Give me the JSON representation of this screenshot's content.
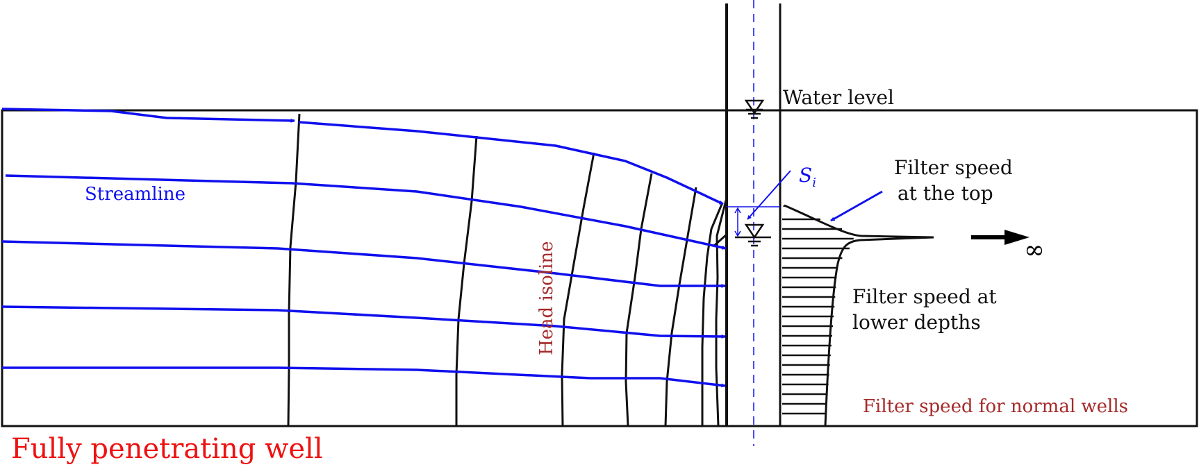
{
  "labels": {
    "water_level": "Water level",
    "streamline": "Streamline",
    "head_isoline": "Head isoline",
    "si_main": "S",
    "si_sub": "i",
    "filter_top_1": "Filter speed",
    "filter_top_2": "at the top",
    "filter_lower_1": "Filter speed at",
    "filter_lower_2": "lower depths",
    "filter_normal": "Filter speed for normal wells",
    "infinity": "∞",
    "title": "Fully penetrating well"
  },
  "colors": {
    "streamline": "#1010ee",
    "isoline": "#111111",
    "title": "#ee1111",
    "annotation": "#a52a2a"
  },
  "icons": [
    "water-level-marker-icon",
    "arrow-right-icon"
  ]
}
